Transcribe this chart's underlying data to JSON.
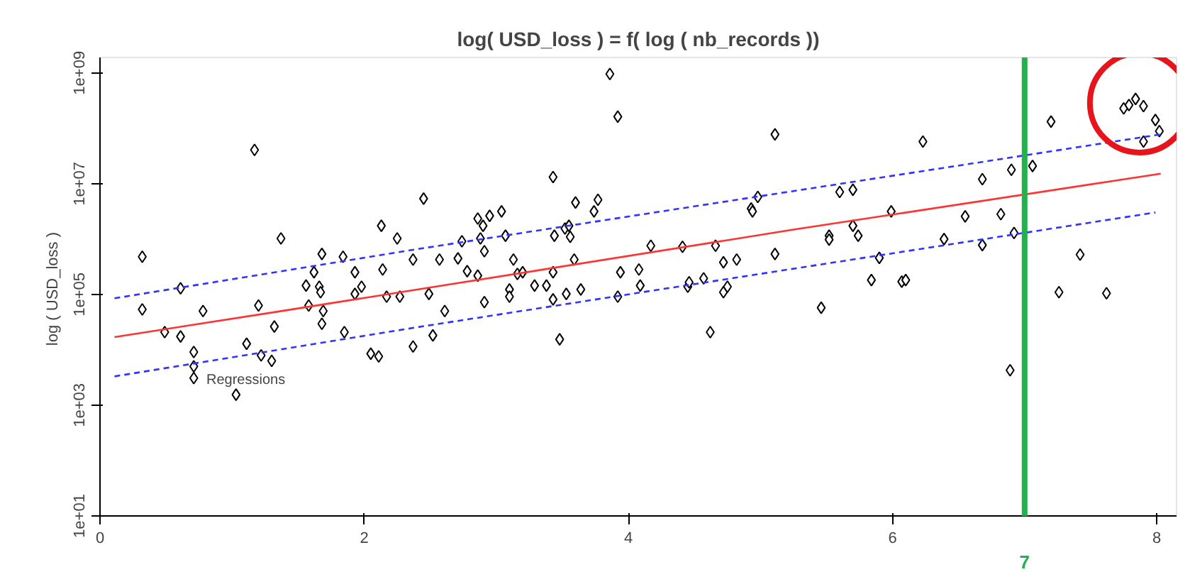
{
  "chart_data": {
    "type": "scatter",
    "title": "log( USD_loss ) = f( log ( nb_records ))",
    "ylabel": "log ( USD_loss  )",
    "log": "y",
    "grid": false,
    "xlim": [
      0,
      8.15
    ],
    "xticks": [
      0,
      2,
      4,
      6,
      8
    ],
    "ylim": [
      10,
      1900000000
    ],
    "yticks": [
      {
        "value": 10,
        "label": "1e+01"
      },
      {
        "value": 1000,
        "label": "1e+03"
      },
      {
        "value": 100000,
        "label": "1e+05"
      },
      {
        "value": 10000000,
        "label": "1e+07"
      },
      {
        "value": 1000000000,
        "label": "1e+09"
      }
    ],
    "ref_lines": [
      {
        "axis": "x",
        "value": 7,
        "label": "7",
        "color": "#22b14c"
      }
    ],
    "annotations": [
      "Regressions"
    ],
    "series": [
      {
        "type": "scatter",
        "marker": "diamond",
        "color": "#000000",
        "x": [
          0.32,
          0.32,
          0.49,
          0.61,
          0.61,
          0.71,
          0.71,
          0.71,
          0.78,
          1.03,
          1.11,
          1.17,
          1.2,
          1.22,
          1.3,
          1.32,
          1.37,
          1.56,
          1.58,
          1.62,
          1.66,
          1.67,
          1.68,
          1.69,
          1.68,
          1.84,
          1.85,
          1.93,
          1.93,
          1.98,
          2.05,
          2.11,
          2.13,
          2.14,
          2.17,
          2.25,
          2.27,
          2.37,
          2.37,
          2.45,
          2.49,
          2.52,
          2.57,
          2.61,
          2.71,
          2.74,
          2.78,
          2.86,
          2.86,
          2.88,
          2.9,
          2.91,
          2.91,
          2.95,
          3.04,
          3.07,
          3.1,
          3.1,
          3.13,
          3.16,
          3.2,
          3.29,
          3.38,
          3.43,
          3.43,
          3.43,
          3.44,
          3.48,
          3.52,
          3.53,
          3.55,
          3.56,
          3.59,
          3.6,
          3.64,
          3.74,
          3.77,
          3.86,
          3.92,
          3.92,
          3.94,
          4.08,
          4.09,
          4.17,
          4.41,
          4.45,
          4.46,
          4.57,
          4.62,
          4.66,
          4.72,
          4.72,
          4.75,
          4.82,
          4.93,
          4.94,
          4.98,
          5.11,
          5.11,
          5.46,
          5.52,
          5.52,
          5.6,
          5.7,
          5.7,
          5.74,
          5.84,
          5.9,
          5.99,
          6.07,
          6.1,
          6.23,
          6.39,
          6.55,
          6.68,
          6.68,
          6.82,
          6.9,
          6.92,
          6.89,
          7.06,
          7.2,
          7.26,
          7.42,
          7.62,
          7.75,
          7.79,
          7.84,
          7.9,
          7.99,
          8.02,
          7.9
        ],
        "values": [
          478630,
          53703,
          20893,
          128825,
          17378,
          9120,
          5012,
          3090,
          50119,
          1549,
          12882,
          40738000,
          63096,
          7943,
          6310,
          26303,
          1023300,
          144540,
          63096,
          251190,
          138040,
          109650,
          537030,
          50119,
          29512,
          478630,
          20893,
          251190,
          102330,
          138040,
          8511,
          7586,
          1737800,
          281840,
          91201,
          1023300,
          91201,
          426580,
          11482,
          5370300,
          102330,
          18197,
          426580,
          50119,
          446680,
          912010,
          263030,
          2344200,
          218780,
          1023300,
          1737800,
          602560,
          72444,
          2630300,
          3162300,
          1148200,
          123030,
          91201,
          426580,
          234420,
          251190,
          144540,
          144540,
          13183000,
          251190,
          81283,
          1148200,
          15488,
          1548800,
          102330,
          1737800,
          1096500,
          426580,
          4570900,
          123030,
          3162300,
          5128200,
          954990000,
          91201,
          162180000,
          251190,
          281840,
          144540,
          758580,
          724440,
          138040,
          165960,
          194980,
          20893,
          758580,
          380190,
          109650,
          138040,
          426580,
          3548100,
          3162300,
          5754400,
          77625000,
          537030,
          57544,
          1148200,
          977240,
          7079500,
          7762200,
          1737800,
          1148200,
          181970,
          457090,
          3162300,
          169820,
          181970,
          57544000,
          1000000,
          2570400,
          12023000,
          776250,
          2818000,
          17783000,
          1288200,
          4266,
          20893000,
          131830000,
          109650,
          524810,
          104710,
          229090000,
          263030000,
          338840000,
          251190000,
          141250000,
          89125000,
          57544000
        ]
      },
      {
        "type": "line",
        "marker": "none",
        "color": "#ff3333",
        "line_style": "solid",
        "x": [
          0.11,
          1.32,
          2.46,
          5.25,
          8.03
        ],
        "values": [
          16982,
          47863,
          128825,
          1479100,
          15136000
        ]
      },
      {
        "type": "line",
        "marker": "none",
        "color": "#3333ff",
        "line_style": "dashed",
        "x": [
          0.11,
          2.46,
          8.03
        ],
        "values": [
          85114,
          691830,
          77625000
        ]
      },
      {
        "type": "line",
        "marker": "none",
        "color": "#3333ff",
        "line_style": "dashed",
        "x": [
          0.11,
          2.46,
          7.99
        ],
        "values": [
          3311,
          26915,
          3019950
        ]
      }
    ]
  }
}
